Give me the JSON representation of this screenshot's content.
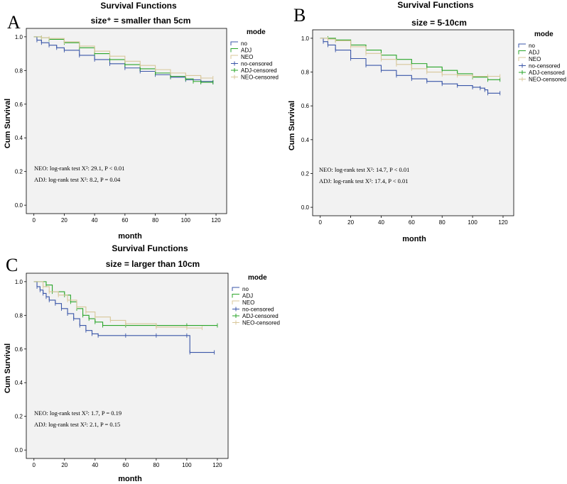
{
  "colors": {
    "no": "#3a56a8",
    "ADJ": "#2aa52a",
    "NEO": "#d8c79a"
  },
  "chart_data": [
    {
      "type": "line",
      "panel_letter": "A",
      "super_title": "Survival Functions",
      "title": "size⁺ = smaller than 5cm",
      "xlabel": "month",
      "ylabel": "Cum Survival",
      "xlim": [
        -5,
        127
      ],
      "ylim": [
        -0.05,
        1.05
      ],
      "xticks": [
        "0",
        "20",
        "40",
        "60",
        "80",
        "100",
        "120"
      ],
      "yticks": [
        "0.0",
        "0.2",
        "0.4",
        "0.6",
        "0.8",
        "1.0"
      ],
      "legend_title": "mode",
      "legend": [
        "no",
        "ADJ",
        "NEO",
        "no-censored",
        "ADJ-censored",
        "NEO-censored"
      ],
      "annotations": [
        "NEO: log-rank test X²: 29.1, P < 0.01",
        "ADJ: log-rank test X²: 8.2, P = 0.04"
      ],
      "series": [
        {
          "name": "no",
          "x": [
            0,
            2,
            5,
            10,
            15,
            20,
            30,
            40,
            50,
            60,
            70,
            80,
            90,
            100,
            110,
            118
          ],
          "y": [
            1.0,
            0.98,
            0.965,
            0.95,
            0.935,
            0.92,
            0.89,
            0.865,
            0.84,
            0.815,
            0.795,
            0.775,
            0.76,
            0.745,
            0.735,
            0.73
          ]
        },
        {
          "name": "ADJ",
          "x": [
            0,
            5,
            10,
            20,
            30,
            40,
            50,
            60,
            70,
            80,
            90,
            100,
            105,
            110,
            118
          ],
          "y": [
            1.0,
            0.995,
            0.985,
            0.965,
            0.935,
            0.9,
            0.865,
            0.835,
            0.81,
            0.785,
            0.765,
            0.75,
            0.735,
            0.73,
            0.73
          ]
        },
        {
          "name": "NEO",
          "x": [
            0,
            5,
            10,
            20,
            30,
            40,
            50,
            60,
            70,
            80,
            90,
            100,
            110,
            118
          ],
          "y": [
            1.0,
            0.995,
            0.99,
            0.97,
            0.945,
            0.915,
            0.885,
            0.855,
            0.83,
            0.805,
            0.785,
            0.77,
            0.755,
            0.755
          ]
        }
      ]
    },
    {
      "type": "line",
      "panel_letter": "B",
      "super_title": "Survival Functions",
      "title": "size = 5-10cm",
      "xlabel": "month",
      "ylabel": "Cum Survival",
      "xlim": [
        -5,
        127
      ],
      "ylim": [
        -0.05,
        1.05
      ],
      "xticks": [
        "0",
        "20",
        "40",
        "60",
        "80",
        "100",
        "120"
      ],
      "yticks": [
        "0.0",
        "0.2",
        "0.4",
        "0.6",
        "0.8",
        "1.0"
      ],
      "legend_title": "mode",
      "legend": [
        "no",
        "ADJ",
        "NEO",
        "no-censored",
        "ADJ-censored",
        "NEO-censored"
      ],
      "annotations": [
        "NEO: log-rank test X²: 14.7, P < 0.01",
        "ADJ: log-rank test X²: 17.4, P < 0.01"
      ],
      "series": [
        {
          "name": "no",
          "x": [
            0,
            2,
            5,
            10,
            20,
            30,
            40,
            50,
            60,
            70,
            80,
            90,
            100,
            105,
            108,
            110,
            118
          ],
          "y": [
            1.0,
            0.98,
            0.96,
            0.93,
            0.88,
            0.84,
            0.81,
            0.78,
            0.76,
            0.745,
            0.73,
            0.72,
            0.71,
            0.705,
            0.695,
            0.675,
            0.675
          ]
        },
        {
          "name": "ADJ",
          "x": [
            0,
            5,
            10,
            20,
            30,
            40,
            50,
            60,
            70,
            80,
            90,
            100,
            110,
            118
          ],
          "y": [
            1.0,
            1.0,
            0.99,
            0.96,
            0.93,
            0.9,
            0.875,
            0.85,
            0.83,
            0.81,
            0.79,
            0.77,
            0.755,
            0.755
          ]
        },
        {
          "name": "NEO",
          "x": [
            0,
            5,
            10,
            20,
            30,
            40,
            50,
            60,
            70,
            80,
            90,
            100,
            110,
            118
          ],
          "y": [
            1.0,
            0.995,
            0.985,
            0.95,
            0.91,
            0.875,
            0.845,
            0.82,
            0.8,
            0.785,
            0.78,
            0.775,
            0.775,
            0.775
          ]
        }
      ]
    },
    {
      "type": "line",
      "panel_letter": "C",
      "super_title": "Survival Functions",
      "title": "size = larger than 10cm",
      "xlabel": "month",
      "ylabel": "Cum Survival",
      "xlim": [
        -5,
        127
      ],
      "ylim": [
        -0.05,
        1.05
      ],
      "xticks": [
        "0",
        "20",
        "40",
        "60",
        "80",
        "100",
        "120"
      ],
      "yticks": [
        "0.0",
        "0.2",
        "0.4",
        "0.6",
        "0.8",
        "1.0"
      ],
      "legend_title": "mode",
      "legend": [
        "no",
        "ADJ",
        "NEO",
        "no-censored",
        "ADJ-censored",
        "NEO-censored"
      ],
      "annotations": [
        "NEO: log-rank test X²: 1.7, P = 0.19",
        "ADJ: log-rank test X²: 2.1, P = 0.15"
      ],
      "series": [
        {
          "name": "no",
          "x": [
            0,
            2,
            4,
            6,
            8,
            10,
            14,
            18,
            22,
            26,
            30,
            34,
            38,
            42,
            60,
            80,
            100,
            102,
            118
          ],
          "y": [
            1.0,
            0.97,
            0.95,
            0.93,
            0.91,
            0.89,
            0.87,
            0.84,
            0.81,
            0.78,
            0.74,
            0.71,
            0.69,
            0.68,
            0.68,
            0.68,
            0.68,
            0.58,
            0.58
          ]
        },
        {
          "name": "ADJ",
          "x": [
            0,
            8,
            12,
            20,
            24,
            28,
            32,
            36,
            40,
            45,
            60,
            80,
            100,
            120
          ],
          "y": [
            1.0,
            0.98,
            0.94,
            0.92,
            0.88,
            0.84,
            0.8,
            0.78,
            0.76,
            0.74,
            0.74,
            0.74,
            0.74,
            0.74
          ]
        },
        {
          "name": "NEO",
          "x": [
            0,
            6,
            10,
            16,
            22,
            28,
            34,
            40,
            50,
            60,
            80,
            100,
            110
          ],
          "y": [
            1.0,
            0.97,
            0.94,
            0.92,
            0.89,
            0.85,
            0.82,
            0.79,
            0.77,
            0.75,
            0.73,
            0.725,
            0.725
          ]
        }
      ]
    }
  ]
}
